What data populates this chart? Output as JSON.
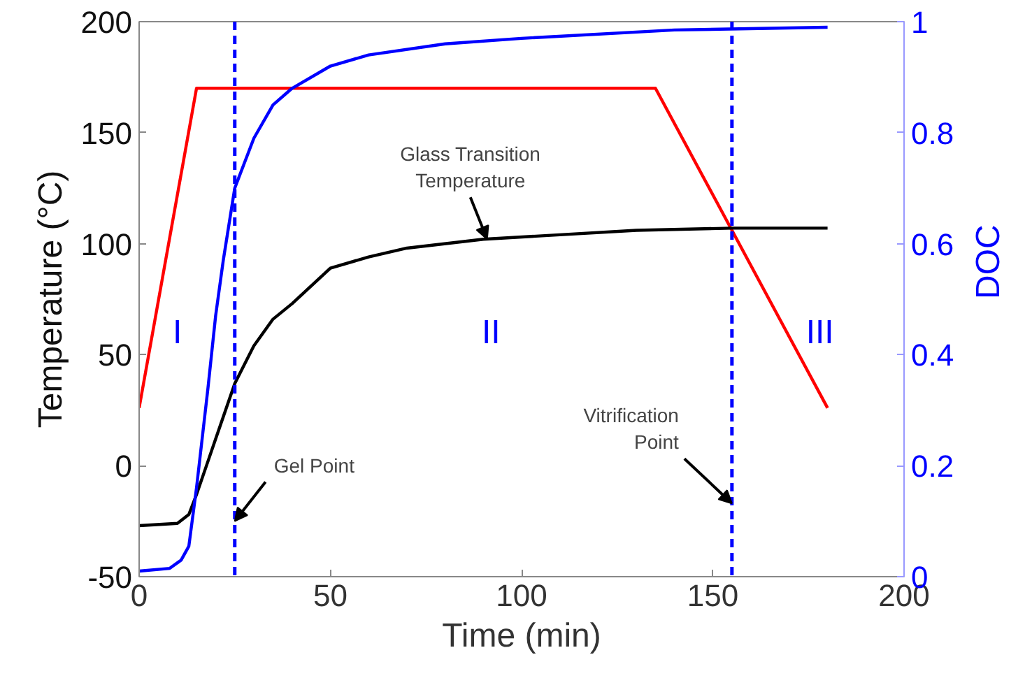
{
  "chart_data": {
    "type": "line",
    "xlabel": "Time (min)",
    "ylabel": "Temperature (°C)",
    "y2label": "DOC",
    "xlim": [
      0,
      200
    ],
    "xticks": [
      0,
      50,
      100,
      150,
      200
    ],
    "ylim": [
      -50,
      200
    ],
    "yticks": [
      -50,
      0,
      50,
      100,
      150,
      200
    ],
    "y2lim": [
      0,
      1
    ],
    "y2ticks": [
      0,
      0.2,
      0.4,
      0.6,
      0.8,
      1
    ],
    "grid": false,
    "marker": "none",
    "line_style": "solid",
    "series": [
      {
        "color": "#ff0000",
        "x": [
          0,
          15,
          135,
          180
        ],
        "values": [
          26,
          170,
          170,
          26
        ]
      },
      {
        "color": "#000000",
        "x": [
          0,
          10,
          13,
          15,
          18,
          20,
          25,
          30,
          35,
          40,
          50,
          60,
          70,
          90,
          110,
          130,
          155,
          180
        ],
        "values": [
          -27,
          -26,
          -22,
          -13,
          2,
          12,
          37,
          54,
          66,
          73,
          89,
          94,
          98,
          102,
          104,
          106,
          107,
          107
        ]
      },
      {
        "color": "#0000ff",
        "axis": "y2",
        "x": [
          0,
          8,
          11,
          13,
          15,
          18,
          20,
          22,
          25,
          30,
          35,
          40,
          50,
          60,
          80,
          100,
          140,
          180
        ],
        "values": [
          0.01,
          0.015,
          0.03,
          0.055,
          0.16,
          0.34,
          0.47,
          0.57,
          0.7,
          0.79,
          0.85,
          0.88,
          0.92,
          0.94,
          0.96,
          0.97,
          0.985,
          0.99
        ]
      }
    ],
    "ref_lines": [
      {
        "axis": "x",
        "value": 25,
        "color": "#0000ff",
        "line_style": "dashed"
      },
      {
        "axis": "x",
        "value": 155,
        "color": "#0000ff",
        "line_style": "dashed"
      }
    ],
    "annotations": [
      "I",
      "II",
      "III",
      {
        "text": "Gel Point",
        "x": 25,
        "y": -25
      },
      {
        "text": "Glass Transition\nTemperature",
        "x": 91,
        "y": 102
      },
      {
        "text": "Vitrification\nPoint",
        "x": 155,
        "y": -17
      }
    ]
  }
}
